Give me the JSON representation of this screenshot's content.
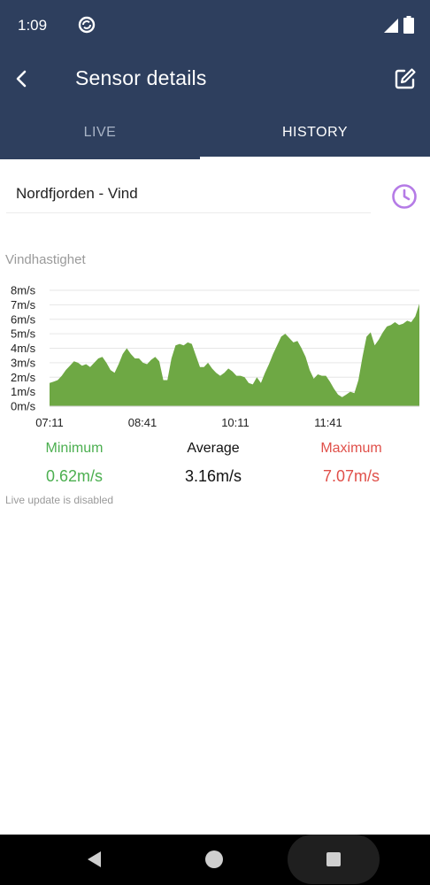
{
  "status_bar": {
    "time": "1:09"
  },
  "app_bar": {
    "title": "Sensor details"
  },
  "tabs": [
    {
      "label": "LIVE",
      "active": false
    },
    {
      "label": "HISTORY",
      "active": true
    }
  ],
  "sensor": {
    "name": "Nordfjorden - Vind"
  },
  "chart_title": "Vindhastighet",
  "chart_data": {
    "type": "area",
    "title": "",
    "xlabel": "",
    "ylabel": "",
    "y_unit": "m/s",
    "ylim": [
      0,
      8
    ],
    "y_ticks": [
      "0m/s",
      "1m/s",
      "2m/s",
      "3m/s",
      "4m/s",
      "5m/s",
      "6m/s",
      "7m/s",
      "8m/s"
    ],
    "x_ticks": [
      "07:11",
      "08:41",
      "10:11",
      "11:41"
    ],
    "grid": true,
    "color": "#6ea844",
    "series": [
      {
        "values": [
          1.6,
          1.7,
          1.8,
          2.1,
          2.5,
          2.8,
          3.1,
          3.0,
          2.8,
          2.9,
          2.7,
          3.0,
          3.3,
          3.4,
          3.0,
          2.5,
          2.3,
          2.9,
          3.6,
          4.0,
          3.6,
          3.3,
          3.3,
          3.0,
          2.9,
          3.2,
          3.4,
          3.1,
          1.8,
          1.8,
          3.3,
          4.2,
          4.3,
          4.2,
          4.4,
          4.3,
          3.5,
          2.7,
          2.7,
          3.0,
          2.6,
          2.3,
          2.1,
          2.3,
          2.6,
          2.4,
          2.1,
          2.1,
          2.0,
          1.6,
          1.5,
          2.0,
          1.6,
          2.3,
          2.9,
          3.6,
          4.2,
          4.8,
          5.0,
          4.7,
          4.4,
          4.5,
          4.0,
          3.4,
          2.5,
          1.9,
          2.2,
          2.1,
          2.1,
          1.7,
          1.2,
          0.8,
          0.62,
          0.8,
          1.0,
          0.9,
          1.8,
          3.4,
          4.8,
          5.1,
          4.2,
          4.6,
          5.1,
          5.5,
          5.6,
          5.8,
          5.6,
          5.7,
          5.9,
          5.8,
          6.2,
          7.07
        ]
      }
    ]
  },
  "stats": {
    "minimum_label": "Minimum",
    "minimum_value": "0.62m/s",
    "average_label": "Average",
    "average_value": "3.16m/s",
    "maximum_label": "Maximum",
    "maximum_value": "7.07m/s"
  },
  "live_note": "Live update is disabled",
  "colors": {
    "header": "#2e3f5e",
    "accent_purple": "#b57be6",
    "minimum": "#4caf50",
    "maximum": "#e0504a",
    "area": "#6ea844"
  },
  "icons": {
    "status_sync": "sync-circle-icon",
    "status_signal": "signal-icon",
    "status_battery": "battery-icon",
    "back": "arrow-back-icon",
    "edit": "edit-square-icon",
    "history": "clock-icon",
    "nav_back": "triangle-back-icon",
    "nav_home": "circle-home-icon",
    "nav_recents": "square-recents-icon"
  }
}
